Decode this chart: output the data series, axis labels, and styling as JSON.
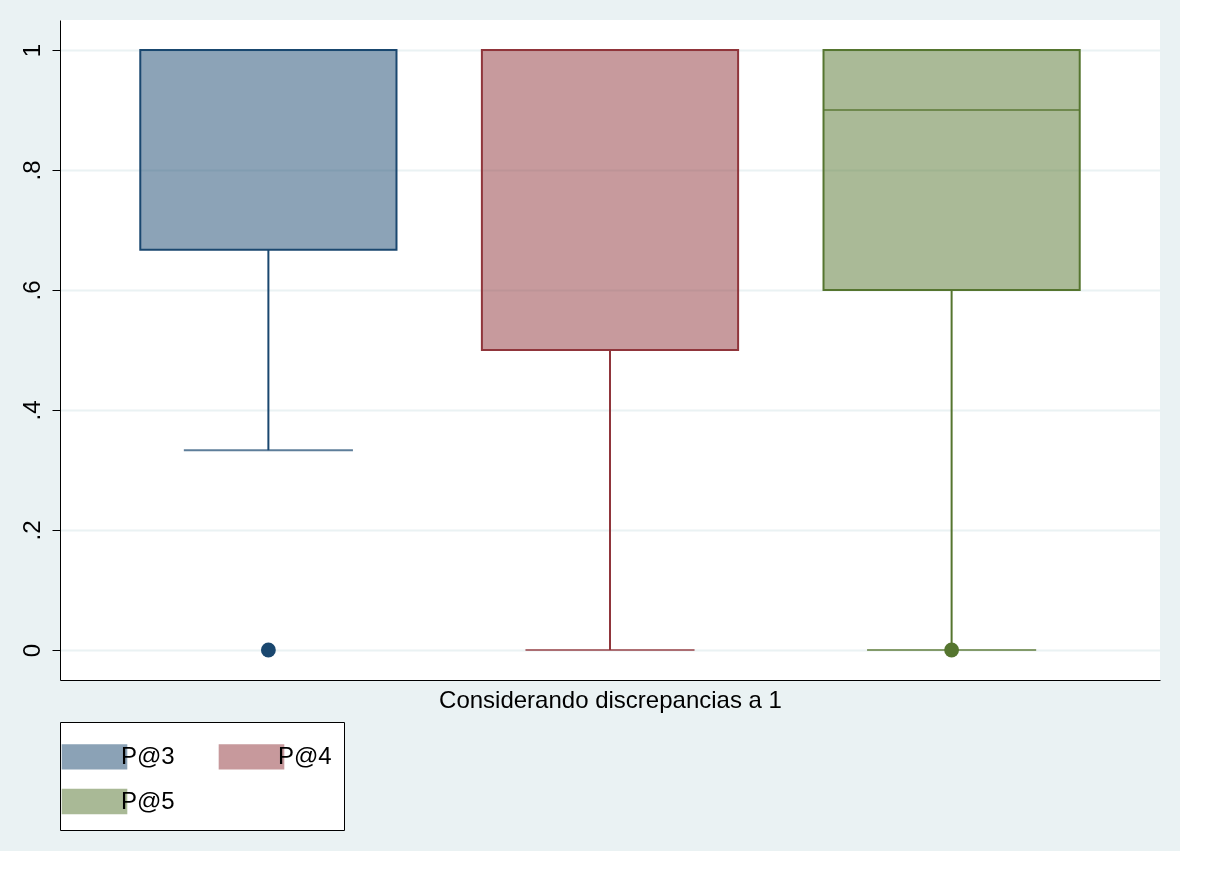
{
  "chart_data": {
    "type": "box",
    "xlabel": "Considerando discrepancias a 1",
    "categories": [
      null
    ],
    "series": [
      {
        "name": "P@3",
        "color": "#1a476f",
        "boxes": [
          {
            "low": 0.333,
            "q1": 0.667,
            "median": 1,
            "q3": 1,
            "high": 1,
            "outliers": [
              0
            ]
          }
        ]
      },
      {
        "name": "P@4",
        "color": "#90353b",
        "boxes": [
          {
            "low": 0,
            "q1": 0.5,
            "median": 1,
            "q3": 1,
            "high": 1
          }
        ]
      },
      {
        "name": "P@5",
        "color": "#55752f",
        "boxes": [
          {
            "low": 0,
            "q1": 0.6,
            "median": 0.9,
            "q3": 1,
            "high": 1,
            "outliers": [
              0
            ]
          }
        ]
      }
    ],
    "ylim": [
      -0.05,
      1.05
    ],
    "yticks": [
      0,
      {
        "value": 0.2,
        "label": ".2"
      },
      {
        "value": 0.4,
        "label": ".4"
      },
      {
        "value": 0.6,
        "label": ".6"
      },
      {
        "value": 0.8,
        "label": ".8"
      },
      1
    ],
    "grid": "y",
    "legend": "bottom"
  }
}
